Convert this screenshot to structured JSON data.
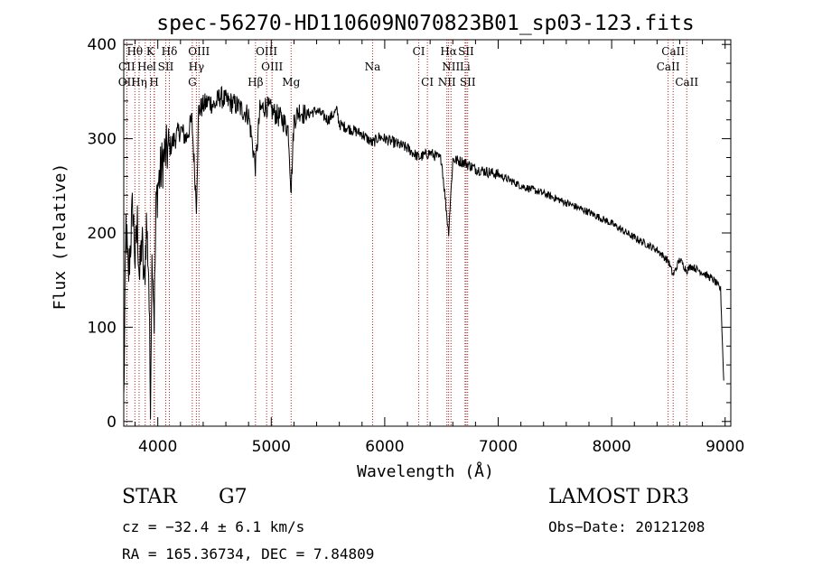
{
  "chart_data": {
    "type": "line",
    "title": "spec-56270-HD110609N070823B01_sp03-123.fits",
    "xlabel": "Wavelength (Å)",
    "ylabel": "Flux (relative)",
    "xlim": [
      3700,
      9050
    ],
    "ylim": [
      -5,
      405
    ],
    "xticks": [
      4000,
      5000,
      6000,
      7000,
      8000,
      9000
    ],
    "yticks": [
      0,
      100,
      200,
      300,
      400
    ],
    "line_color": "#000000",
    "marker_color": "#b22222",
    "series": [
      {
        "name": "flux",
        "x": [
          3700,
          3720,
          3740,
          3760,
          3780,
          3800,
          3820,
          3840,
          3860,
          3880,
          3900,
          3920,
          3935,
          3950,
          3968,
          3985,
          4000,
          4050,
          4100,
          4150,
          4200,
          4250,
          4300,
          4340,
          4360,
          4400,
          4450,
          4500,
          4550,
          4600,
          4650,
          4700,
          4750,
          4800,
          4861,
          4900,
          4950,
          5000,
          5050,
          5100,
          5150,
          5175,
          5200,
          5250,
          5300,
          5400,
          5500,
          5580,
          5600,
          5700,
          5800,
          5893,
          5950,
          6000,
          6100,
          6200,
          6300,
          6400,
          6500,
          6563,
          6600,
          6700,
          6800,
          7000,
          7200,
          7400,
          7600,
          7800,
          8000,
          8200,
          8400,
          8500,
          8542,
          8600,
          8662,
          8700,
          8800,
          8900,
          8960,
          8990
        ],
        "y": [
          20,
          210,
          150,
          190,
          230,
          170,
          210,
          150,
          195,
          140,
          210,
          160,
          20,
          190,
          110,
          230,
          250,
          280,
          290,
          300,
          310,
          300,
          320,
          230,
          330,
          335,
          340,
          335,
          345,
          340,
          338,
          335,
          330,
          325,
          270,
          330,
          335,
          330,
          325,
          320,
          310,
          245,
          320,
          330,
          325,
          330,
          320,
          330,
          315,
          310,
          305,
          295,
          302,
          300,
          295,
          290,
          280,
          285,
          278,
          200,
          278,
          275,
          268,
          262,
          250,
          242,
          232,
          222,
          210,
          195,
          182,
          170,
          155,
          172,
          160,
          165,
          158,
          150,
          140,
          35
        ]
      }
    ],
    "spectral_lines": [
      {
        "label": "Hθ",
        "x": 3798,
        "row": 0
      },
      {
        "label": "K",
        "x": 3934,
        "row": 0
      },
      {
        "label": "Hδ",
        "x": 4102,
        "row": 0
      },
      {
        "label": "OIII",
        "x": 4363,
        "row": 0
      },
      {
        "label": "OIII",
        "x": 4959,
        "row": 0
      },
      {
        "label": "CI",
        "x": 6300,
        "row": 0
      },
      {
        "label": "Hα",
        "x": 6563,
        "row": 0
      },
      {
        "label": "SII",
        "x": 6717,
        "row": 0
      },
      {
        "label": "CaII",
        "x": 8542,
        "row": 0
      },
      {
        "label": "CII",
        "x": 3727,
        "row": 1
      },
      {
        "label": "He",
        "x": 3889,
        "row": 1
      },
      {
        "label": "I",
        "x": 3970,
        "row": 1
      },
      {
        "label": "SII",
        "x": 4070,
        "row": 1
      },
      {
        "label": "Hγ",
        "x": 4340,
        "row": 1
      },
      {
        "label": "OIII",
        "x": 5007,
        "row": 1
      },
      {
        "label": "NII",
        "x": 6584,
        "row": 1
      },
      {
        "label": "Li",
        "x": 6708,
        "row": 1
      },
      {
        "label": "CaII",
        "x": 8498,
        "row": 1
      },
      {
        "label": "OII",
        "x": 3727,
        "row": 2
      },
      {
        "label": "Hη",
        "x": 3835,
        "row": 2
      },
      {
        "label": "H",
        "x": 3968,
        "row": 2
      },
      {
        "label": "G",
        "x": 4304,
        "row": 2
      },
      {
        "label": "Hβ",
        "x": 4861,
        "row": 2
      },
      {
        "label": "Mg",
        "x": 5175,
        "row": 2
      },
      {
        "label": "Na",
        "x": 5893,
        "row": 1
      },
      {
        "label": "CI",
        "x": 6376,
        "row": 2
      },
      {
        "label": "NII",
        "x": 6548,
        "row": 2
      },
      {
        "label": "SII",
        "x": 6731,
        "row": 2
      },
      {
        "label": "CaII",
        "x": 8662,
        "row": 2
      }
    ]
  },
  "info": {
    "class": "STAR",
    "subclass": "G7",
    "survey": "LAMOST DR3",
    "cz": "cz = −32.4 ± 6.1 km/s",
    "obs_date": "Obs−Date: 20121208",
    "coords": "RA = 165.36734, DEC =    7.84809"
  }
}
